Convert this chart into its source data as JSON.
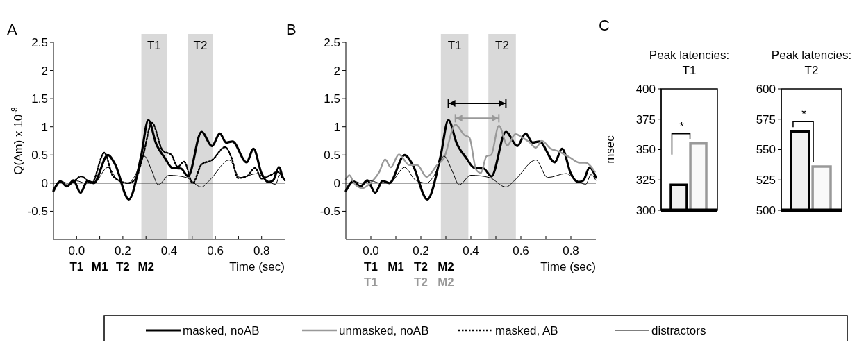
{
  "chart_data": [
    {
      "type": "line",
      "xlabel": "Time (sec)",
      "ylabel": "Q(Am) x 10$^{-8}$",
      "xlim": [
        -0.1,
        0.9
      ],
      "ylim": [
        -1,
        2.5
      ],
      "xticks": [
        {
          "value": 0,
          "label": "0.0"
        },
        {
          "value": 0.1,
          "label": null
        },
        {
          "value": 0.2,
          "label": "0.2"
        },
        {
          "value": 0.3,
          "label": null
        },
        {
          "value": 0.4,
          "label": "0.4"
        },
        {
          "value": 0.5,
          "label": null
        },
        {
          "value": 0.6,
          "label": "0.6"
        },
        {
          "value": 0.7,
          "label": null
        },
        {
          "value": 0.8,
          "label": "0.8"
        }
      ],
      "yticks": [
        -0.5,
        0,
        0.5,
        1,
        1.5,
        2,
        2.5
      ],
      "grid": false,
      "legend": "bottom",
      "bands": [
        {
          "axis": "x",
          "from": 0.28,
          "to": 0.39,
          "label": "T1",
          "color": "#d9d9d9"
        },
        {
          "axis": "x",
          "from": 0.48,
          "to": 0.59,
          "label": "T2",
          "color": "#d9d9d9"
        }
      ],
      "ref_lines": [
        {
          "axis": "y",
          "value": 0,
          "label": null,
          "color": "#000000"
        }
      ],
      "annotations": [
        "A",
        "T1 M1 T2 M2"
      ],
      "series": [
        {
          "name": "masked, noAB",
          "color": "#000000",
          "line_style": "solid",
          "x": [
            -0.1,
            -0.07,
            -0.042,
            -0.014,
            0.017,
            0.047,
            0.074,
            0.135,
            0.167,
            0.226,
            0.279,
            0.31,
            0.344,
            0.381,
            0.414,
            0.451,
            0.482,
            0.54,
            0.586,
            0.619,
            0.647,
            0.674,
            0.735,
            0.765,
            0.8,
            0.828,
            0.85,
            0.875,
            0.89
          ],
          "values": [
            -0.14,
            0.03,
            -0.06,
            0.05,
            -0.17,
            0.04,
            0,
            0.5,
            0.33,
            -0.29,
            0.48,
            1.12,
            0.7,
            0.45,
            0.27,
            0.26,
            0.12,
            0.91,
            0.66,
            0.88,
            0.72,
            0.74,
            0.37,
            0.61,
            0.17,
            0.02,
            0.05,
            0.28,
            0.1
          ]
        },
        {
          "name": "masked, AB",
          "color": "#000000",
          "line_style": "dotted",
          "x": [
            -0.1,
            -0.07,
            -0.04,
            -0.01,
            0.02,
            0.065,
            0.12,
            0.158,
            0.223,
            0.256,
            0.288,
            0.326,
            0.372,
            0.41,
            0.437,
            0.465,
            0.502,
            0.54,
            0.586,
            0.642,
            0.67,
            0.698,
            0.735,
            0.772,
            0.8,
            0.837,
            0.87,
            0.9
          ],
          "values": [
            -0.12,
            0.02,
            -0.04,
            0.04,
            0.12,
            0,
            0.54,
            0.12,
            0,
            0.08,
            0.5,
            1.07,
            0.58,
            0.5,
            0.29,
            0.38,
            0,
            0.33,
            0.41,
            0.64,
            0.45,
            0.09,
            0.12,
            0.27,
            0.08,
            0.14,
            0.2,
            0.05
          ]
        },
        {
          "name": "distractors",
          "color": "#000000",
          "line_style": "solid",
          "x": [
            -0.1,
            -0.065,
            -0.04,
            0,
            0.037,
            0.074,
            0.135,
            0.177,
            0.223,
            0.251,
            0.293,
            0.326,
            0.353,
            0.4,
            0.474,
            0.54,
            0.577,
            0.66,
            0.707,
            0.781,
            0.819,
            0.86,
            0.88,
            0.9
          ],
          "values": [
            -0.1,
            0.03,
            0,
            0.04,
            0,
            0,
            0.28,
            0.06,
            0,
            0.12,
            0.48,
            0.21,
            -0.03,
            0.14,
            0.1,
            -0.07,
            0.06,
            0.41,
            0.1,
            0.17,
            0.06,
            -0.02,
            0.15,
            0.05
          ]
        }
      ]
    },
    {
      "type": "line",
      "xlabel": "Time (sec)",
      "xlim": [
        -0.1,
        0.9
      ],
      "ylim": [
        -1,
        2.5
      ],
      "xticks": [
        {
          "value": 0,
          "label": "0.0"
        },
        {
          "value": 0.1,
          "label": null
        },
        {
          "value": 0.2,
          "label": "0.2"
        },
        {
          "value": 0.3,
          "label": null
        },
        {
          "value": 0.4,
          "label": "0.4"
        },
        {
          "value": 0.5,
          "label": null
        },
        {
          "value": 0.6,
          "label": "0.6"
        },
        {
          "value": 0.7,
          "label": null
        },
        {
          "value": 0.8,
          "label": "0.8"
        }
      ],
      "yticks": [
        -0.5,
        0,
        0.5,
        1,
        1.5,
        2,
        2.5
      ],
      "grid": false,
      "legend": "bottom",
      "bands": [
        {
          "axis": "x",
          "from": 0.28,
          "to": 0.39,
          "label": "T1",
          "color": "#d9d9d9"
        },
        {
          "axis": "x",
          "from": 0.47,
          "to": 0.58,
          "label": "T2",
          "color": "#d9d9d9"
        }
      ],
      "ref_lines": [
        {
          "axis": "y",
          "value": 0,
          "label": null,
          "color": "#000000"
        }
      ],
      "annotations": [
        "B",
        "T1 M1 T2 M2",
        "T1  T2 M2"
      ],
      "series": [
        {
          "name": "masked, noAB",
          "color": "#000000",
          "line_style": "solid",
          "x": [
            -0.1,
            -0.07,
            -0.042,
            -0.014,
            0.017,
            0.047,
            0.074,
            0.135,
            0.167,
            0.226,
            0.279,
            0.31,
            0.344,
            0.381,
            0.414,
            0.451,
            0.482,
            0.54,
            0.586,
            0.619,
            0.647,
            0.674,
            0.735,
            0.765,
            0.8,
            0.828,
            0.85,
            0.875,
            0.9
          ],
          "values": [
            -0.14,
            0.03,
            -0.06,
            0.05,
            -0.17,
            0.04,
            0,
            0.5,
            0.33,
            -0.29,
            0.48,
            1.12,
            0.7,
            0.45,
            0.27,
            0.26,
            0.12,
            0.91,
            0.66,
            0.88,
            0.72,
            0.74,
            0.37,
            0.61,
            0.17,
            0.02,
            0.05,
            0.28,
            0.1
          ]
        },
        {
          "name": "unmasked, noAB",
          "color": "#999999",
          "line_style": "solid",
          "x": [
            -0.1,
            -0.086,
            -0.067,
            -0.035,
            0,
            0.034,
            0.057,
            0.08,
            0.112,
            0.154,
            0.186,
            0.223,
            0.265,
            0.292,
            0.338,
            0.375,
            0.394,
            0.421,
            0.44,
            0.463,
            0.481,
            0.512,
            0.546,
            0.578,
            0.606,
            0.633,
            0.66,
            0.684,
            0.72,
            0.748,
            0.794,
            0.836,
            0.859,
            0.896
          ],
          "values": [
            0.07,
            0.14,
            0,
            -0.09,
            0.01,
            0.2,
            0.42,
            0.28,
            0.51,
            0.32,
            0.32,
            0.11,
            0.32,
            0.44,
            1.04,
            0.85,
            0.81,
            0.24,
            0.18,
            0.48,
            0.5,
            1.02,
            0.67,
            0.87,
            0.81,
            0.73,
            0.63,
            0.75,
            0.61,
            0.57,
            0.46,
            0.36,
            0.36,
            0.2
          ]
        },
        {
          "name": "distractors",
          "color": "#000000",
          "line_style": "solid",
          "x": [
            -0.1,
            -0.065,
            -0.04,
            0,
            0.037,
            0.074,
            0.135,
            0.177,
            0.223,
            0.251,
            0.293,
            0.326,
            0.353,
            0.4,
            0.474,
            0.54,
            0.577,
            0.66,
            0.707,
            0.781,
            0.819,
            0.86,
            0.88,
            0.9
          ],
          "values": [
            -0.1,
            0.03,
            0,
            0.04,
            0,
            0,
            0.28,
            0.06,
            0,
            0.12,
            0.48,
            0.21,
            -0.03,
            0.14,
            0.1,
            -0.07,
            0.06,
            0.41,
            0.1,
            0.17,
            0.06,
            -0.02,
            0.15,
            0.05
          ]
        }
      ]
    },
    {
      "type": "bar",
      "title": "Peak latencies: T1",
      "ylabel": "msec",
      "categories": [
        null,
        null
      ],
      "values": [
        321,
        355
      ],
      "colors": [
        "#000000",
        "#999999"
      ],
      "ylim": [
        300,
        400
      ],
      "yticks": [
        300,
        325,
        350,
        375,
        400
      ],
      "annotations": [
        "C",
        "*"
      ]
    },
    {
      "type": "bar",
      "title": "Peak latencies: T2",
      "categories": [
        null,
        null
      ],
      "values": [
        565,
        536
      ],
      "colors": [
        "#000000",
        "#999999"
      ],
      "ylim": [
        500,
        600
      ],
      "yticks": [
        500,
        525,
        550,
        575,
        600
      ],
      "annotations": [
        "*"
      ]
    }
  ]
}
